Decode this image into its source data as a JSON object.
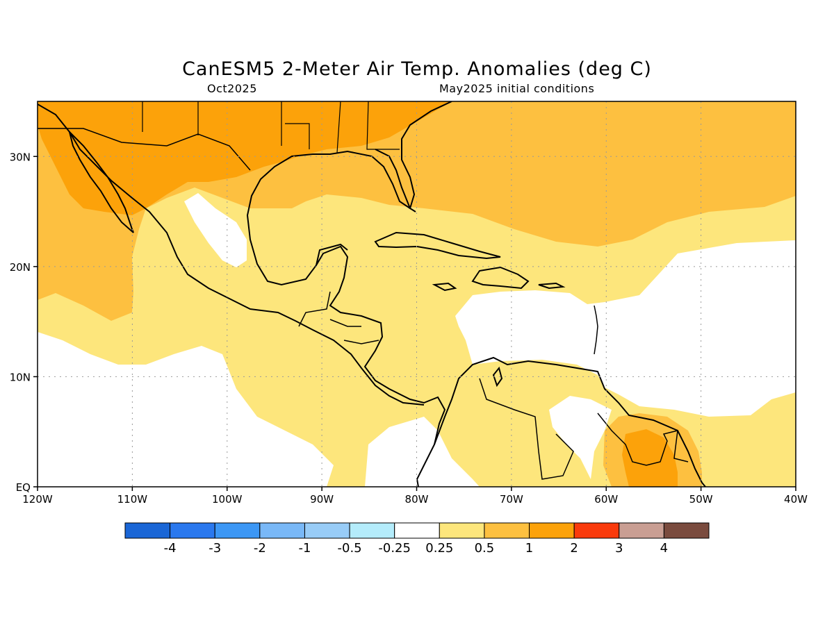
{
  "title": "CanESM5 2-Meter Air Temp. Anomalies (deg C)",
  "subtitle_left": "Oct2025",
  "subtitle_right": "May2025 initial conditions",
  "map": {
    "lon_range": [
      -120,
      -40
    ],
    "lat_range": [
      0,
      35
    ],
    "lon_ticks": [
      {
        "value": -120,
        "label": "120W"
      },
      {
        "value": -110,
        "label": "110W"
      },
      {
        "value": -100,
        "label": "100W"
      },
      {
        "value": -90,
        "label": "90W"
      },
      {
        "value": -80,
        "label": "80W"
      },
      {
        "value": -70,
        "label": "70W"
      },
      {
        "value": -60,
        "label": "60W"
      },
      {
        "value": -50,
        "label": "50W"
      },
      {
        "value": -40,
        "label": "40W"
      }
    ],
    "lat_ticks": [
      {
        "value": 0,
        "label": "EQ"
      },
      {
        "value": 10,
        "label": "10N"
      },
      {
        "value": 20,
        "label": "20N"
      },
      {
        "value": 30,
        "label": "30N"
      }
    ],
    "gridlines": true
  },
  "colorbar": {
    "colors": [
      "#1a66d6",
      "#2a78ee",
      "#3c97f5",
      "#79b8f7",
      "#98ccf7",
      "#b4ecfb",
      "#ffffff",
      "#fde67c",
      "#fdc040",
      "#fca20a",
      "#fa3a0c",
      "#c99e93",
      "#7a4b3e"
    ],
    "labels": [
      "-4",
      "-3",
      "-2",
      "-1",
      "-0.5",
      "-0.25",
      "0.25",
      "0.5",
      "1",
      "2",
      "3",
      "4"
    ]
  },
  "colors": {
    "anom_0_25_to_0_5": "#fde67c",
    "anom_0_5_to_1": "#fdc040",
    "anom_1_to_2": "#fca20a",
    "neutral": "#ffffff"
  }
}
